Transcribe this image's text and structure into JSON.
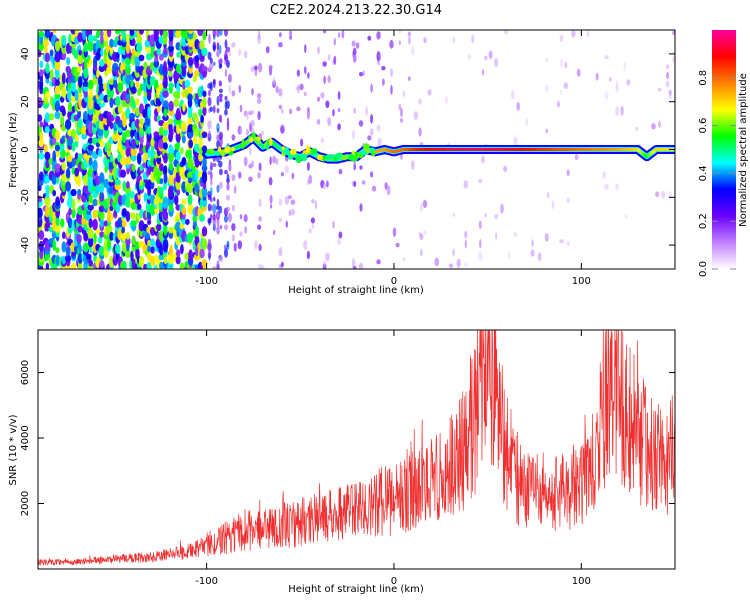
{
  "title": "C2E2.2024.213.22.30.G14",
  "chart_data": [
    {
      "type": "heatmap",
      "xlabel": "Height of straight line (km)",
      "ylabel": "Frequency (Hz)",
      "xlim": [
        -190,
        150
      ],
      "ylim": [
        -50,
        50
      ],
      "xticks": [
        -100,
        0,
        100
      ],
      "yticks": [
        -40,
        -20,
        0,
        20,
        40
      ],
      "colorbar": {
        "label": "Normalized spectral amplitude",
        "range": [
          0,
          1
        ],
        "ticks": [
          "0.0",
          "0.2",
          "0.4",
          "0.6",
          "0.8"
        ],
        "colormap": [
          "#ffffff",
          "#c080ff",
          "#6a00ff",
          "#0000ff",
          "#00ffff",
          "#00ff00",
          "#ffff00",
          "#ff8000",
          "#ff0000",
          "#ff00a0"
        ]
      },
      "signal_track": {
        "x": [
          -100,
          -90,
          -80,
          -75,
          -70,
          -65,
          -60,
          -55,
          -50,
          -45,
          -40,
          -35,
          -30,
          -25,
          -20,
          -15,
          -10,
          -5,
          0,
          5,
          10,
          20,
          40,
          60,
          80,
          100,
          120,
          130,
          135,
          140,
          150
        ],
        "frequency_hz": [
          -2,
          -1,
          2,
          5,
          1,
          3,
          0,
          -2,
          -3,
          -1,
          -3,
          -4,
          -4,
          -3,
          -3,
          0,
          -1,
          0,
          -1,
          0,
          0,
          0,
          0,
          0,
          0,
          0,
          0,
          0,
          -3,
          0,
          0
        ],
        "amplitude": [
          0.45,
          0.5,
          0.55,
          0.65,
          0.5,
          0.55,
          0.5,
          0.5,
          0.5,
          0.5,
          0.55,
          0.6,
          0.6,
          0.65,
          0.65,
          0.7,
          0.75,
          0.75,
          0.8,
          0.8,
          0.85,
          0.9,
          0.95,
          0.92,
          0.85,
          0.8,
          0.75,
          0.7,
          0.55,
          0.7,
          0.7
        ]
      }
    },
    {
      "type": "line",
      "xlabel": "Height of straight line (km)",
      "ylabel": "SNR (10 * v/v)",
      "xlim": [
        -190,
        150
      ],
      "ylim": [
        0,
        7300
      ],
      "xticks": [
        -100,
        0,
        100
      ],
      "yticks": [
        2000,
        4000,
        6000
      ],
      "color": "#f03030",
      "series": [
        {
          "x": [
            -190,
            -170,
            -150,
            -130,
            -110,
            -100,
            -90,
            -80,
            -70,
            -60,
            -50,
            -40,
            -30,
            -20,
            -10,
            0,
            10,
            20,
            30,
            35,
            40,
            45,
            48,
            50,
            52,
            55,
            60,
            65,
            70,
            80,
            90,
            100,
            105,
            110,
            115,
            118,
            120,
            125,
            130,
            135,
            140,
            145,
            150
          ],
          "y": [
            200,
            200,
            300,
            350,
            500,
            700,
            900,
            1100,
            1150,
            1250,
            1350,
            1450,
            1550,
            1700,
            1900,
            2050,
            2250,
            2500,
            2900,
            3200,
            3800,
            4900,
            5900,
            6400,
            5600,
            4800,
            3500,
            2700,
            2300,
            2000,
            2200,
            2600,
            3200,
            4000,
            5000,
            5500,
            5200,
            4600,
            4000,
            3500,
            3200,
            3000,
            2800
          ]
        }
      ]
    }
  ]
}
